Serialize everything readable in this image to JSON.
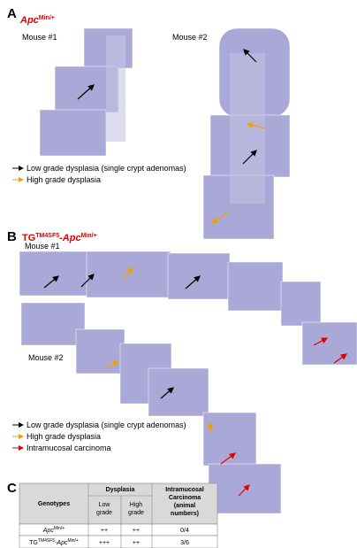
{
  "panel_a": {
    "label": "A",
    "title": {
      "base": "Apc",
      "sup": "Min/+"
    },
    "mouse_1": "Mouse #1",
    "mouse_2": "Mouse #2",
    "legend": [
      "Low grade dysplasia (single crypt adenomas)",
      "High grade dysplasia"
    ]
  },
  "panel_b": {
    "label": "B",
    "title": {
      "prefix": "TG",
      "prefix_sup": "TM4SF5",
      "base": "-Apc",
      "sup": "Min/+"
    },
    "mouse_1": "Mouse #1",
    "mouse_2": "Mouse #2",
    "legend": [
      "Low grade dysplasia (single crypt adenomas)",
      "High grade dysplasia",
      "Intramucosal carcinoma"
    ]
  },
  "panel_c": {
    "label": "C",
    "header": {
      "genotypes": "Genotypes",
      "dysplasia": "Dysplasia",
      "low_grade": [
        "Low",
        "grade"
      ],
      "high_grade": [
        "High",
        "grade"
      ],
      "carcinoma": [
        "Intramucosal",
        "Carcinoma",
        "(animal",
        "numbers)"
      ]
    },
    "rows": [
      {
        "genotype": {
          "base": "Apc",
          "sup": "Min/+"
        },
        "low": "++",
        "high": "++",
        "carcinoma": "0/4"
      },
      {
        "genotype": {
          "prefix": "TG",
          "prefix_sup": "TM4SF5",
          "base": "-Apc",
          "sup": "Min/+"
        },
        "low": "+++",
        "high": "++",
        "carcinoma": "3/6"
      }
    ]
  }
}
